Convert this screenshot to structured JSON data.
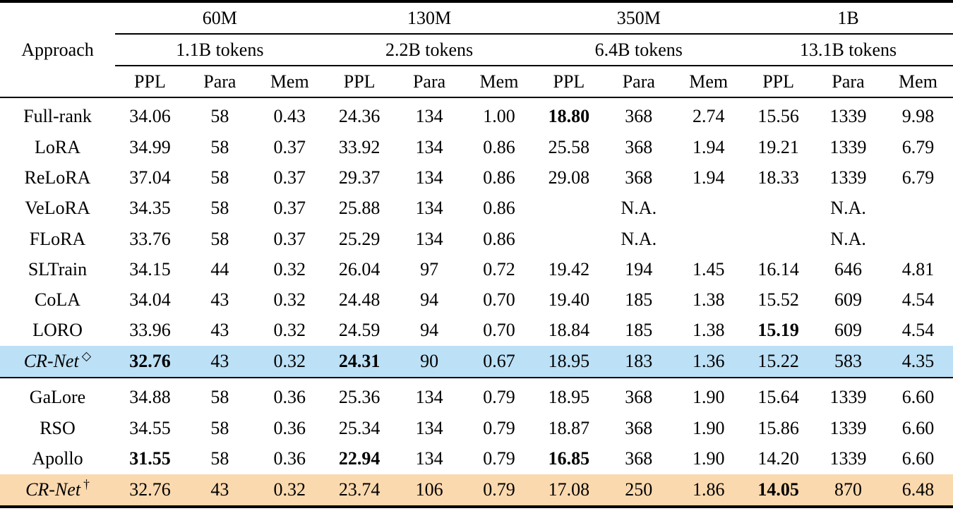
{
  "colors": {
    "highlight_blue": "#BCE0F6",
    "highlight_orange": "#FBD9AE"
  },
  "table": {
    "approach_header": "Approach",
    "groups": [
      {
        "size": "60M",
        "tokens": "1.1B tokens"
      },
      {
        "size": "130M",
        "tokens": "2.2B tokens"
      },
      {
        "size": "350M",
        "tokens": "6.4B tokens"
      },
      {
        "size": "1B",
        "tokens": "13.1B tokens"
      }
    ],
    "metrics": [
      "PPL",
      "Para",
      "Mem"
    ],
    "sections": [
      {
        "rows": [
          {
            "approach": "Full-rank",
            "cells": [
              {
                "t": "34.06"
              },
              {
                "t": "58"
              },
              {
                "t": "0.43"
              },
              {
                "t": "24.36"
              },
              {
                "t": "134"
              },
              {
                "t": "1.00"
              },
              {
                "t": "18.80",
                "b": true
              },
              {
                "t": "368"
              },
              {
                "t": "2.74"
              },
              {
                "t": "15.56"
              },
              {
                "t": "1339"
              },
              {
                "t": "9.98"
              }
            ]
          },
          {
            "approach": "LoRA",
            "cells": [
              {
                "t": "34.99"
              },
              {
                "t": "58"
              },
              {
                "t": "0.37"
              },
              {
                "t": "33.92"
              },
              {
                "t": "134"
              },
              {
                "t": "0.86"
              },
              {
                "t": "25.58"
              },
              {
                "t": "368"
              },
              {
                "t": "1.94"
              },
              {
                "t": "19.21"
              },
              {
                "t": "1339"
              },
              {
                "t": "6.79"
              }
            ]
          },
          {
            "approach": "ReLoRA",
            "cells": [
              {
                "t": "37.04"
              },
              {
                "t": "58"
              },
              {
                "t": "0.37"
              },
              {
                "t": "29.37"
              },
              {
                "t": "134"
              },
              {
                "t": "0.86"
              },
              {
                "t": "29.08"
              },
              {
                "t": "368"
              },
              {
                "t": "1.94"
              },
              {
                "t": "18.33"
              },
              {
                "t": "1339"
              },
              {
                "t": "6.79"
              }
            ]
          },
          {
            "approach": "VeLoRA",
            "cells": [
              {
                "t": "34.35"
              },
              {
                "t": "58"
              },
              {
                "t": "0.37"
              },
              {
                "t": "25.88"
              },
              {
                "t": "134"
              },
              {
                "t": "0.86"
              },
              {
                "t": "N.A.",
                "span": 3
              },
              {
                "t": "N.A.",
                "span": 3
              }
            ]
          },
          {
            "approach": "FLoRA",
            "cells": [
              {
                "t": "33.76"
              },
              {
                "t": "58"
              },
              {
                "t": "0.37"
              },
              {
                "t": "25.29"
              },
              {
                "t": "134"
              },
              {
                "t": "0.86"
              },
              {
                "t": "N.A.",
                "span": 3
              },
              {
                "t": "N.A.",
                "span": 3
              }
            ]
          },
          {
            "approach": "SLTrain",
            "cells": [
              {
                "t": "34.15"
              },
              {
                "t": "44"
              },
              {
                "t": "0.32"
              },
              {
                "t": "26.04"
              },
              {
                "t": "97"
              },
              {
                "t": "0.72"
              },
              {
                "t": "19.42"
              },
              {
                "t": "194"
              },
              {
                "t": "1.45"
              },
              {
                "t": "16.14"
              },
              {
                "t": "646"
              },
              {
                "t": "4.81"
              }
            ]
          },
          {
            "approach": "CoLA",
            "cells": [
              {
                "t": "34.04"
              },
              {
                "t": "43"
              },
              {
                "t": "0.32"
              },
              {
                "t": "24.48"
              },
              {
                "t": "94"
              },
              {
                "t": "0.70"
              },
              {
                "t": "19.40"
              },
              {
                "t": "185"
              },
              {
                "t": "1.38"
              },
              {
                "t": "15.52"
              },
              {
                "t": "609"
              },
              {
                "t": "4.54"
              }
            ]
          },
          {
            "approach": "LORO",
            "cells": [
              {
                "t": "33.96"
              },
              {
                "t": "43"
              },
              {
                "t": "0.32"
              },
              {
                "t": "24.59"
              },
              {
                "t": "94"
              },
              {
                "t": "0.70"
              },
              {
                "t": "18.84"
              },
              {
                "t": "185"
              },
              {
                "t": "1.38"
              },
              {
                "t": "15.19",
                "b": true
              },
              {
                "t": "609"
              },
              {
                "t": "4.54"
              }
            ]
          },
          {
            "approach": "CR-Net",
            "sup": "◇",
            "italic": true,
            "highlight": "blue",
            "cells": [
              {
                "t": "32.76",
                "b": true
              },
              {
                "t": "43"
              },
              {
                "t": "0.32"
              },
              {
                "t": "24.31",
                "b": true
              },
              {
                "t": "90"
              },
              {
                "t": "0.67"
              },
              {
                "t": "18.95"
              },
              {
                "t": "183"
              },
              {
                "t": "1.36"
              },
              {
                "t": "15.22"
              },
              {
                "t": "583"
              },
              {
                "t": "4.35"
              }
            ]
          }
        ]
      },
      {
        "rows": [
          {
            "approach": "GaLore",
            "cells": [
              {
                "t": "34.88"
              },
              {
                "t": "58"
              },
              {
                "t": "0.36"
              },
              {
                "t": "25.36"
              },
              {
                "t": "134"
              },
              {
                "t": "0.79"
              },
              {
                "t": "18.95"
              },
              {
                "t": "368"
              },
              {
                "t": "1.90"
              },
              {
                "t": "15.64"
              },
              {
                "t": "1339"
              },
              {
                "t": "6.60"
              }
            ]
          },
          {
            "approach": "RSO",
            "cells": [
              {
                "t": "34.55"
              },
              {
                "t": "58"
              },
              {
                "t": "0.36"
              },
              {
                "t": "25.34"
              },
              {
                "t": "134"
              },
              {
                "t": "0.79"
              },
              {
                "t": "18.87"
              },
              {
                "t": "368"
              },
              {
                "t": "1.90"
              },
              {
                "t": "15.86"
              },
              {
                "t": "1339"
              },
              {
                "t": "6.60"
              }
            ]
          },
          {
            "approach": "Apollo",
            "cells": [
              {
                "t": "31.55",
                "b": true
              },
              {
                "t": "58"
              },
              {
                "t": "0.36"
              },
              {
                "t": "22.94",
                "b": true
              },
              {
                "t": "134"
              },
              {
                "t": "0.79"
              },
              {
                "t": "16.85",
                "b": true
              },
              {
                "t": "368"
              },
              {
                "t": "1.90"
              },
              {
                "t": "14.20"
              },
              {
                "t": "1339"
              },
              {
                "t": "6.60"
              }
            ]
          },
          {
            "approach": "CR-Net",
            "sup": "†",
            "italic": true,
            "highlight": "orange",
            "cells": [
              {
                "t": "32.76"
              },
              {
                "t": "43"
              },
              {
                "t": "0.32"
              },
              {
                "t": "23.74"
              },
              {
                "t": "106"
              },
              {
                "t": "0.79"
              },
              {
                "t": "17.08"
              },
              {
                "t": "250"
              },
              {
                "t": "1.86"
              },
              {
                "t": "14.05",
                "b": true
              },
              {
                "t": "870"
              },
              {
                "t": "6.48"
              }
            ]
          }
        ]
      }
    ]
  }
}
